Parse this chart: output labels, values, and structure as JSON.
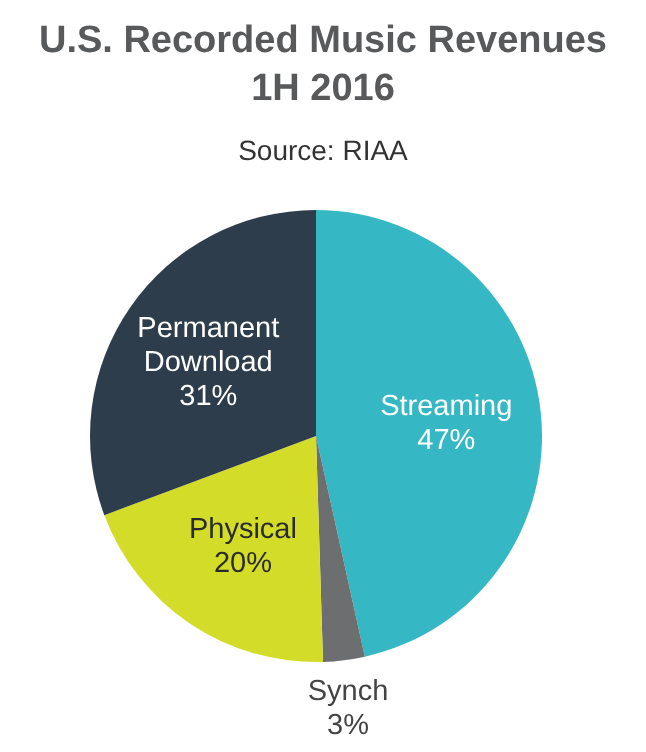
{
  "chart_data": {
    "type": "pie",
    "title": "U.S. Recorded Music Revenues\n1H 2016",
    "subtitle": "Source: RIAA",
    "categories": [
      "Streaming",
      "Synch",
      "Physical",
      "Permanent Download"
    ],
    "values": [
      47,
      3,
      20,
      31
    ],
    "value_labels": [
      "47%",
      "3%",
      "20%",
      "31%"
    ],
    "colors": [
      "#35b8c4",
      "#6d6e70",
      "#d4dc2a",
      "#2e3d4b"
    ]
  }
}
